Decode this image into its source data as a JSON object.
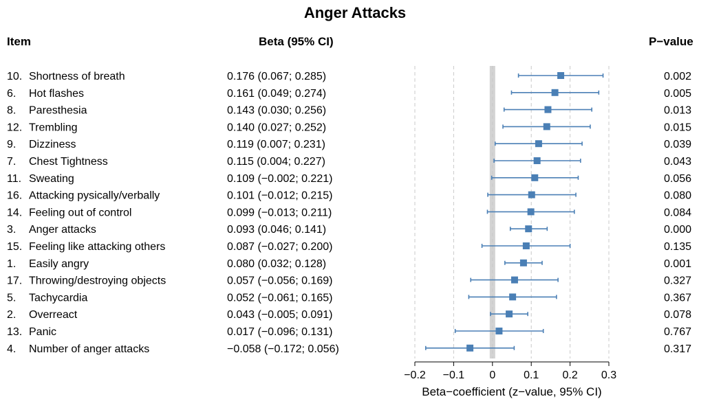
{
  "chart_data": {
    "type": "forest",
    "title": "Anger Attacks",
    "headers": {
      "item": "Item",
      "beta": "Beta (95% CI)",
      "p": "P−value"
    },
    "xlabel": "Beta−coefficient (z−value, 95% CI)",
    "xlim": [
      -0.2,
      0.3
    ],
    "xticks": [
      -0.2,
      -0.1,
      0.0,
      0.1,
      0.2,
      0.3
    ],
    "xtick_labels": [
      "−0.2",
      "−0.1",
      "0",
      "0.1",
      "0.2",
      "0.3"
    ],
    "grid": "vertical dashed",
    "reference_line": 0,
    "marker_color": "#4a7fb5",
    "band_color": "#d3d3d3",
    "rows": [
      {
        "num": "10.",
        "item": "Shortness of breath",
        "beta": 0.176,
        "lo": 0.067,
        "hi": 0.285,
        "ci_text": "0.176 (0.067; 0.285)",
        "p": "0.002"
      },
      {
        "num": "6.",
        "item": "Hot flashes",
        "beta": 0.161,
        "lo": 0.049,
        "hi": 0.274,
        "ci_text": "0.161 (0.049; 0.274)",
        "p": "0.005"
      },
      {
        "num": "8.",
        "item": "Paresthesia",
        "beta": 0.143,
        "lo": 0.03,
        "hi": 0.256,
        "ci_text": "0.143 (0.030; 0.256)",
        "p": "0.013"
      },
      {
        "num": "12.",
        "item": "Trembling",
        "beta": 0.14,
        "lo": 0.027,
        "hi": 0.252,
        "ci_text": "0.140 (0.027; 0.252)",
        "p": "0.015"
      },
      {
        "num": "9.",
        "item": "Dizziness",
        "beta": 0.119,
        "lo": 0.007,
        "hi": 0.231,
        "ci_text": "0.119 (0.007; 0.231)",
        "p": "0.039"
      },
      {
        "num": "7.",
        "item": "Chest Tightness",
        "beta": 0.115,
        "lo": 0.004,
        "hi": 0.227,
        "ci_text": "0.115 (0.004; 0.227)",
        "p": "0.043"
      },
      {
        "num": "11.",
        "item": "Sweating",
        "beta": 0.109,
        "lo": -0.002,
        "hi": 0.221,
        "ci_text": "0.109 (−0.002; 0.221)",
        "p": "0.056"
      },
      {
        "num": "16.",
        "item": "Attacking pysically/verbally",
        "beta": 0.101,
        "lo": -0.012,
        "hi": 0.215,
        "ci_text": "0.101 (−0.012; 0.215)",
        "p": "0.080"
      },
      {
        "num": "14.",
        "item": "Feeling out of control",
        "beta": 0.099,
        "lo": -0.013,
        "hi": 0.211,
        "ci_text": "0.099 (−0.013; 0.211)",
        "p": "0.084"
      },
      {
        "num": "3.",
        "item": "Anger attacks",
        "beta": 0.093,
        "lo": 0.046,
        "hi": 0.141,
        "ci_text": "0.093 (0.046; 0.141)",
        "p": "0.000"
      },
      {
        "num": "15.",
        "item": "Feeling like attacking others",
        "beta": 0.087,
        "lo": -0.027,
        "hi": 0.2,
        "ci_text": "0.087 (−0.027; 0.200)",
        "p": "0.135"
      },
      {
        "num": "1.",
        "item": "Easily angry",
        "beta": 0.08,
        "lo": 0.032,
        "hi": 0.128,
        "ci_text": "0.080 (0.032; 0.128)",
        "p": "0.001"
      },
      {
        "num": "17.",
        "item": "Throwing/destroying objects",
        "beta": 0.057,
        "lo": -0.056,
        "hi": 0.169,
        "ci_text": "0.057 (−0.056; 0.169)",
        "p": "0.327"
      },
      {
        "num": "5.",
        "item": "Tachycardia",
        "beta": 0.052,
        "lo": -0.061,
        "hi": 0.165,
        "ci_text": "0.052 (−0.061; 0.165)",
        "p": "0.367"
      },
      {
        "num": "2.",
        "item": "Overreact",
        "beta": 0.043,
        "lo": -0.005,
        "hi": 0.091,
        "ci_text": "0.043 (−0.005; 0.091)",
        "p": "0.078"
      },
      {
        "num": "13.",
        "item": "Panic",
        "beta": 0.017,
        "lo": -0.096,
        "hi": 0.131,
        "ci_text": "0.017 (−0.096; 0.131)",
        "p": "0.767"
      },
      {
        "num": "4.",
        "item": "Number of anger attacks",
        "beta": -0.058,
        "lo": -0.172,
        "hi": 0.056,
        "ci_text": "−0.058 (−0.172; 0.056)",
        "p": "0.317"
      }
    ]
  }
}
